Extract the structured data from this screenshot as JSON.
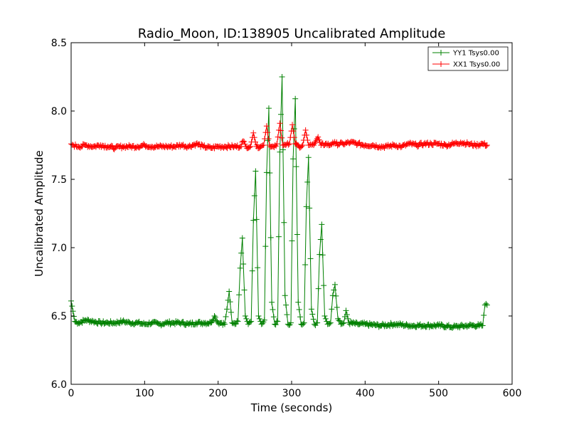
{
  "chart_data": {
    "type": "line",
    "title": "Radio_Moon, ID:138905 Uncalibrated Amplitude",
    "xlabel": "Time (seconds)",
    "ylabel": "Uncalibrated Amplitude",
    "xlim": [
      0,
      600
    ],
    "ylim": [
      6.0,
      8.5
    ],
    "xticks": [
      "0",
      "100",
      "200",
      "300",
      "400",
      "500",
      "600"
    ],
    "yticks": [
      "6.0",
      "6.5",
      "7.0",
      "7.5",
      "8.0",
      "8.5"
    ],
    "grid": false,
    "legend_position": "top-right",
    "series": [
      {
        "name": "YY1 Tsys0.00",
        "color": "#008000",
        "marker": "plus",
        "x": [
          0,
          5,
          10,
          20,
          30,
          40,
          50,
          60,
          70,
          80,
          90,
          100,
          110,
          120,
          130,
          140,
          150,
          160,
          170,
          180,
          190,
          195,
          200,
          205,
          209,
          212,
          215,
          219,
          223,
          227,
          230,
          233,
          237,
          241,
          245,
          248,
          251,
          255,
          259,
          263,
          266,
          269,
          273,
          277,
          281,
          284,
          287,
          291,
          295,
          299,
          302,
          305,
          309,
          313,
          317,
          320,
          323,
          327,
          331,
          335,
          338,
          341,
          345,
          349,
          353,
          356,
          359,
          363,
          367,
          371,
          374,
          378,
          390,
          400,
          420,
          440,
          460,
          480,
          500,
          520,
          540,
          555,
          560,
          563,
          566
        ],
        "values": [
          6.61,
          6.46,
          6.45,
          6.47,
          6.46,
          6.45,
          6.45,
          6.45,
          6.46,
          6.45,
          6.45,
          6.44,
          6.45,
          6.44,
          6.45,
          6.45,
          6.45,
          6.44,
          6.45,
          6.45,
          6.45,
          6.5,
          6.45,
          6.45,
          6.44,
          6.55,
          6.68,
          6.45,
          6.44,
          6.46,
          6.85,
          7.07,
          6.5,
          6.44,
          6.46,
          7.2,
          7.56,
          6.5,
          6.44,
          6.47,
          7.55,
          8.02,
          6.6,
          6.44,
          6.46,
          7.7,
          8.25,
          6.65,
          6.44,
          6.45,
          7.65,
          8.09,
          6.6,
          6.44,
          6.45,
          7.3,
          7.66,
          6.55,
          6.44,
          6.45,
          6.95,
          7.17,
          6.5,
          6.44,
          6.45,
          6.65,
          6.73,
          6.48,
          6.44,
          6.45,
          6.54,
          6.45,
          6.44,
          6.44,
          6.43,
          6.44,
          6.43,
          6.43,
          6.43,
          6.42,
          6.43,
          6.43,
          6.43,
          6.58,
          6.58
        ]
      },
      {
        "name": "XX1 Tsys0.00",
        "color": "#ff0000",
        "marker": "plus",
        "x": [
          0,
          3,
          10,
          20,
          30,
          40,
          50,
          60,
          70,
          80,
          90,
          100,
          110,
          120,
          130,
          140,
          150,
          160,
          170,
          180,
          190,
          200,
          210,
          220,
          230,
          234,
          238,
          244,
          248,
          252,
          258,
          262,
          266,
          270,
          275,
          280,
          284,
          288,
          292,
          297,
          301,
          305,
          310,
          315,
          319,
          323,
          330,
          336,
          340,
          346,
          352,
          356,
          360,
          370,
          380,
          390,
          400,
          410,
          420,
          430,
          440,
          450,
          460,
          470,
          480,
          490,
          500,
          510,
          520,
          530,
          540,
          550,
          560,
          566
        ],
        "values": [
          7.76,
          7.75,
          7.74,
          7.75,
          7.74,
          7.75,
          7.74,
          7.73,
          7.74,
          7.74,
          7.74,
          7.75,
          7.74,
          7.74,
          7.74,
          7.74,
          7.75,
          7.74,
          7.76,
          7.74,
          7.73,
          7.74,
          7.74,
          7.74,
          7.74,
          7.78,
          7.74,
          7.74,
          7.84,
          7.74,
          7.74,
          7.75,
          7.89,
          7.75,
          7.74,
          7.76,
          7.91,
          7.75,
          7.75,
          7.76,
          7.9,
          7.76,
          7.74,
          7.75,
          7.86,
          7.75,
          7.75,
          7.81,
          7.75,
          7.76,
          7.75,
          7.77,
          7.76,
          7.76,
          7.77,
          7.76,
          7.75,
          7.75,
          7.74,
          7.74,
          7.75,
          7.74,
          7.76,
          7.75,
          7.76,
          7.76,
          7.76,
          7.75,
          7.76,
          7.77,
          7.76,
          7.75,
          7.76,
          7.75
        ]
      }
    ]
  }
}
